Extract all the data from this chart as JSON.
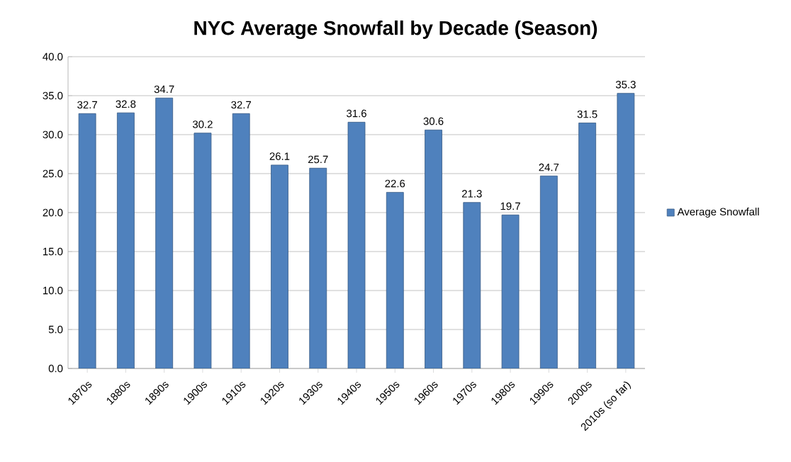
{
  "chart_data": {
    "type": "bar",
    "title": "NYC Average Snowfall by Decade (Season)",
    "categories": [
      "1870s",
      "1880s",
      "1890s",
      "1900s",
      "1910s",
      "1920s",
      "1930s",
      "1940s",
      "1950s",
      "1960s",
      "1970s",
      "1980s",
      "1990s",
      "2000s",
      "2010s (so far)"
    ],
    "series": [
      {
        "name": "Average Snowfall",
        "color": "#4f81bd",
        "values": [
          32.7,
          32.8,
          34.7,
          30.2,
          32.7,
          26.1,
          25.7,
          31.6,
          22.6,
          30.6,
          21.3,
          19.7,
          24.7,
          31.5,
          35.3
        ]
      }
    ],
    "ylim": [
      0,
      40
    ],
    "yticks": [
      {
        "value": 0,
        "label": "0.0"
      },
      {
        "value": 5,
        "label": "5.0"
      },
      {
        "value": 10,
        "label": "10.0"
      },
      {
        "value": 15,
        "label": "15.0"
      },
      {
        "value": 20,
        "label": "20.0"
      },
      {
        "value": 25,
        "label": "25.0"
      },
      {
        "value": 30,
        "label": "30.0"
      },
      {
        "value": 35,
        "label": "35.0"
      },
      {
        "value": 40,
        "label": "40.0"
      }
    ],
    "grid": "y",
    "legend": "right",
    "data_labels": true
  }
}
